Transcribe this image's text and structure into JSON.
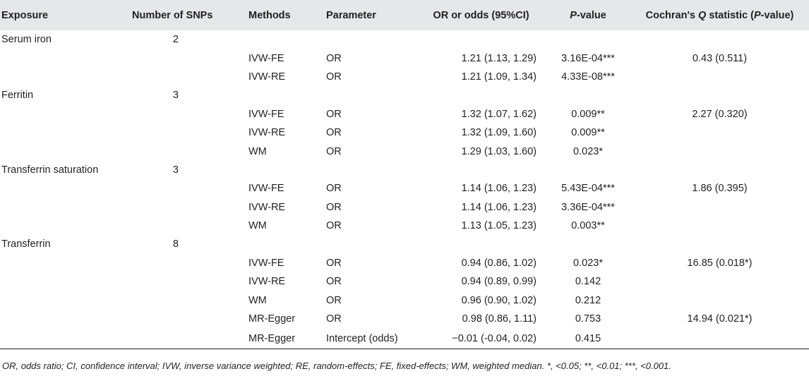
{
  "table": {
    "headers": {
      "exposure": "Exposure",
      "snps": "Number of SNPs",
      "methods": "Methods",
      "parameter": "Parameter",
      "or": "OR or odds (95%CI)",
      "p_italic": "P",
      "p_rest": "-value",
      "q_pre": "Cochran's ",
      "q_italic": "Q",
      "q_mid": " statistic (",
      "q_italic2": "P",
      "q_post": "-value)"
    },
    "rows": [
      {
        "exposure": "Serum iron",
        "snps": "2",
        "method": "",
        "param": "",
        "or": "",
        "p": "",
        "q": ""
      },
      {
        "exposure": "",
        "snps": "",
        "method": "IVW-FE",
        "param": "OR",
        "or": "1.21 (1.13, 1.29)",
        "p": "3.16E-04***",
        "q": "0.43 (0.511)"
      },
      {
        "exposure": "",
        "snps": "",
        "method": "IVW-RE",
        "param": "OR",
        "or": "1.21 (1.09, 1.34)",
        "p": "4.33E-08***",
        "q": ""
      },
      {
        "exposure": "Ferritin",
        "snps": "3",
        "method": "",
        "param": "",
        "or": "",
        "p": "",
        "q": ""
      },
      {
        "exposure": "",
        "snps": "",
        "method": "IVW-FE",
        "param": "OR",
        "or": "1.32 (1.07, 1.62)",
        "p": "0.009**",
        "q": "2.27 (0.320)"
      },
      {
        "exposure": "",
        "snps": "",
        "method": "IVW-RE",
        "param": "OR",
        "or": "1.32 (1.09, 1.60)",
        "p": "0.009**",
        "q": ""
      },
      {
        "exposure": "",
        "snps": "",
        "method": "WM",
        "param": "OR",
        "or": "1.29 (1.03, 1.60)",
        "p": "0.023*",
        "q": ""
      },
      {
        "exposure": "Transferrin saturation",
        "snps": "3",
        "method": "",
        "param": "",
        "or": "",
        "p": "",
        "q": ""
      },
      {
        "exposure": "",
        "snps": "",
        "method": "IVW-FE",
        "param": "OR",
        "or": "1.14 (1.06, 1.23)",
        "p": "5.43E-04***",
        "q": "1.86 (0.395)"
      },
      {
        "exposure": "",
        "snps": "",
        "method": "IVW-RE",
        "param": "OR",
        "or": "1.14 (1.06, 1.23)",
        "p": "3.36E-04***",
        "q": ""
      },
      {
        "exposure": "",
        "snps": "",
        "method": "WM",
        "param": "OR",
        "or": "1.13 (1.05, 1.23)",
        "p": "0.003**",
        "q": ""
      },
      {
        "exposure": "Transferrin",
        "snps": "8",
        "method": "",
        "param": "",
        "or": "",
        "p": "",
        "q": ""
      },
      {
        "exposure": "",
        "snps": "",
        "method": "IVW-FE",
        "param": "OR",
        "or": "0.94 (0.86, 1.02)",
        "p": "0.023*",
        "q": "16.85 (0.018*)"
      },
      {
        "exposure": "",
        "snps": "",
        "method": "IVW-RE",
        "param": "OR",
        "or": "0.94 (0.89, 0.99)",
        "p": "0.142",
        "q": ""
      },
      {
        "exposure": "",
        "snps": "",
        "method": "WM",
        "param": "OR",
        "or": "0.96 (0.90, 1.02)",
        "p": "0.212",
        "q": ""
      },
      {
        "exposure": "",
        "snps": "",
        "method": "MR-Egger",
        "param": "OR",
        "or": "0.98 (0.86, 1.11)",
        "p": "0.753",
        "q": "14.94 (0.021*)"
      },
      {
        "exposure": "",
        "snps": "",
        "method": "MR-Egger",
        "param": "Intercept (odds)",
        "or": "−0.01 (-0.04, 0.02)",
        "p": "0.415",
        "q": ""
      }
    ]
  },
  "footnote": "OR, odds ratio; CI, confidence interval; IVW, inverse variance weighted; RE, random-effects; FE, fixed-effects; WM, weighted median. *, <0.05; **, <0.01; ***, <0.001."
}
